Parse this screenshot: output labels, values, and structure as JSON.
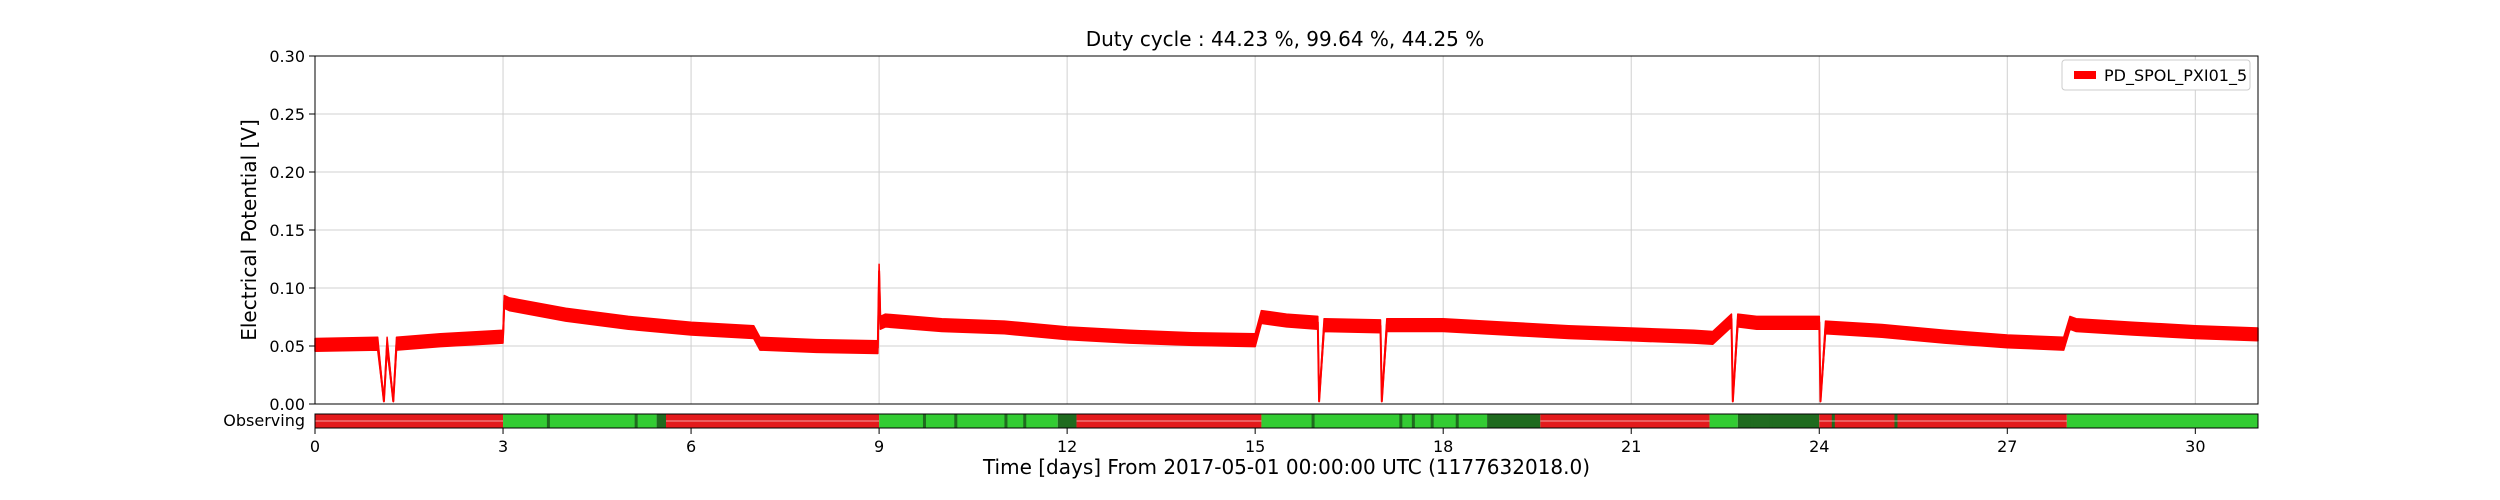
{
  "chart_data": {
    "type": "line",
    "title": "Duty cycle : 44.23 %, 99.64 %, 44.25 %",
    "xlabel": "Time [days] From 2017-05-01 00:00:00 UTC (1177632018.0)",
    "ylabel": "Electrical Potential [V]",
    "xlim": [
      0,
      31
    ],
    "ylim": [
      0,
      0.3
    ],
    "x_ticks": [
      0,
      3,
      6,
      9,
      12,
      15,
      18,
      21,
      24,
      27,
      30
    ],
    "y_ticks": [
      "0.00",
      "0.05",
      "0.10",
      "0.15",
      "0.20",
      "0.25",
      "0.30"
    ],
    "grid": true,
    "legend_position": "top-right",
    "series": [
      {
        "name": "PD_SPOL_PXI01_5",
        "color": "#ff0000",
        "x": [
          0,
          1.0,
          1.1,
          1.15,
          1.25,
          1.3,
          2.0,
          3.0,
          3.02,
          3.1,
          4.0,
          5.0,
          6.0,
          7.0,
          7.1,
          8.0,
          8.98,
          9.0,
          9.02,
          9.1,
          10.0,
          11.0,
          12.0,
          13.0,
          14.0,
          15.0,
          15.1,
          15.5,
          16.0,
          16.02,
          16.1,
          17.0,
          17.02,
          17.1,
          18.0,
          19.0,
          20.0,
          21.0,
          22.0,
          22.3,
          22.6,
          22.62,
          22.7,
          23.0,
          24.0,
          24.02,
          24.1,
          25.0,
          26.0,
          27.0,
          27.9,
          28.0,
          28.1,
          29.0,
          30.0,
          31.0
        ],
        "y": [
          0.051,
          0.052,
          0.002,
          0.052,
          0.002,
          0.052,
          0.055,
          0.058,
          0.088,
          0.086,
          0.077,
          0.07,
          0.065,
          0.062,
          0.052,
          0.05,
          0.049,
          0.115,
          0.07,
          0.072,
          0.068,
          0.066,
          0.061,
          0.058,
          0.056,
          0.055,
          0.075,
          0.072,
          0.07,
          0.002,
          0.068,
          0.067,
          0.002,
          0.068,
          0.068,
          0.065,
          0.062,
          0.06,
          0.058,
          0.057,
          0.072,
          0.002,
          0.072,
          0.07,
          0.07,
          0.002,
          0.066,
          0.063,
          0.058,
          0.054,
          0.052,
          0.07,
          0.068,
          0.065,
          0.062,
          0.06
        ],
        "band_width": 0.011
      }
    ],
    "observing_segments": {
      "label": "Observing",
      "colors": {
        "off": "#e31a1c",
        "on": "#33cc33",
        "dark": "#1f6b1f"
      },
      "segments": [
        {
          "start": 0,
          "end": 3.0,
          "state": "off"
        },
        {
          "start": 3.0,
          "end": 5.45,
          "state": "on"
        },
        {
          "start": 5.45,
          "end": 5.6,
          "state": "dark"
        },
        {
          "start": 5.6,
          "end": 9.0,
          "state": "off"
        },
        {
          "start": 9.0,
          "end": 11.85,
          "state": "on"
        },
        {
          "start": 11.85,
          "end": 12.15,
          "state": "dark"
        },
        {
          "start": 12.15,
          "end": 15.1,
          "state": "off"
        },
        {
          "start": 15.1,
          "end": 18.7,
          "state": "on"
        },
        {
          "start": 18.7,
          "end": 19.55,
          "state": "dark"
        },
        {
          "start": 19.55,
          "end": 22.25,
          "state": "off"
        },
        {
          "start": 22.25,
          "end": 22.7,
          "state": "on"
        },
        {
          "start": 22.7,
          "end": 24.0,
          "state": "dark"
        },
        {
          "start": 24.0,
          "end": 27.95,
          "state": "off"
        },
        {
          "start": 27.95,
          "end": 31.0,
          "state": "on"
        }
      ],
      "dark_marks": [
        3.7,
        5.1,
        9.7,
        10.2,
        11.0,
        11.3,
        15.9,
        17.3,
        17.5,
        17.8,
        18.2,
        22.9,
        23.2,
        24.2,
        25.2
      ]
    }
  }
}
